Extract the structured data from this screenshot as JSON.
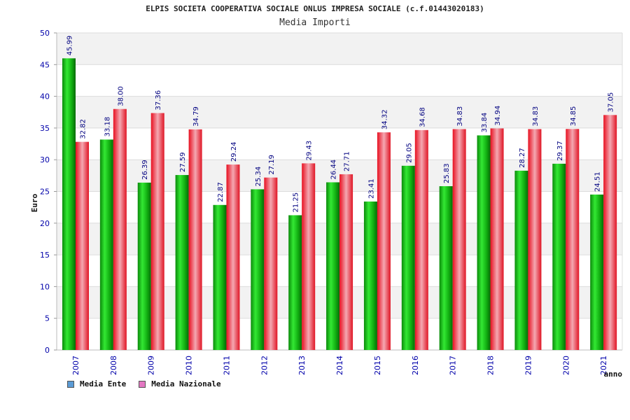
{
  "chart_data": {
    "type": "bar",
    "title": "ELPIS SOCIETA COOPERATIVA SOCIALE ONLUS IMPRESA SOCIALE (c.f.01443020183)",
    "subtitle": "Media Importi",
    "xlabel": "anno",
    "ylabel": "Euro",
    "ylim": [
      0,
      50
    ],
    "yticks": [
      0,
      5,
      10,
      15,
      20,
      25,
      30,
      35,
      40,
      45,
      50
    ],
    "categories": [
      "2007",
      "2008",
      "2009",
      "2010",
      "2011",
      "2012",
      "2013",
      "2014",
      "2015",
      "2016",
      "2017",
      "2018",
      "2019",
      "2020",
      "2021"
    ],
    "series": [
      {
        "name": "Media Ente",
        "values": [
          45.99,
          33.18,
          26.39,
          27.59,
          22.87,
          25.34,
          21.25,
          26.44,
          23.41,
          29.05,
          25.83,
          33.84,
          28.27,
          29.37,
          24.51
        ]
      },
      {
        "name": "Media Nazionale",
        "values": [
          32.82,
          38.0,
          37.36,
          34.79,
          29.24,
          27.19,
          29.43,
          27.71,
          34.32,
          34.68,
          34.83,
          34.94,
          34.83,
          34.85,
          37.05
        ]
      }
    ],
    "value_labels": [
      [
        "45.99",
        "33.18",
        "26.39",
        "27.59",
        "22.87",
        "25.34",
        "21.25",
        "26.44",
        "23.41",
        "29.05",
        "25.83",
        "33.84",
        "28.27",
        "29.37",
        "24.51"
      ],
      [
        "32.82",
        "38.00",
        "37.36",
        "34.79",
        "29.24",
        "27.19",
        "29.43",
        "27.71",
        "34.32",
        "34.68",
        "34.83",
        "34.94",
        "34.83",
        "34.85",
        "37.05"
      ]
    ],
    "legend": [
      {
        "label": "Media Ente",
        "color": "#5b9bd5"
      },
      {
        "label": "Media Nazionale",
        "color": "#e377c2"
      }
    ],
    "colors": {
      "ente": "#22c322",
      "nazionale": "#ee4455"
    },
    "grid": true,
    "legend_position": "bottom-left"
  }
}
